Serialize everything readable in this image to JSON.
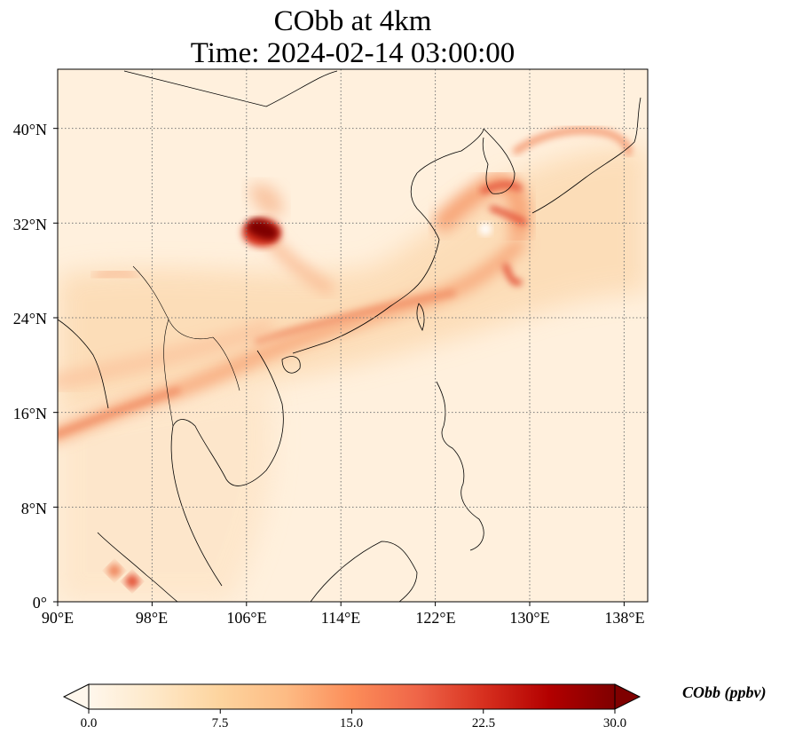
{
  "title": {
    "line1": "CObb at 4km",
    "line2": "Time: 2024-02-14 03:00:00"
  },
  "map": {
    "projection": "PlateCarree",
    "lon_range": [
      90,
      140
    ],
    "lat_range": [
      0,
      45
    ],
    "gridlines": "dotted",
    "x_ticks": [
      "90°E",
      "98°E",
      "106°E",
      "114°E",
      "122°E",
      "130°E",
      "138°E"
    ],
    "y_ticks": [
      "0°",
      "8°N",
      "16°N",
      "24°N",
      "32°N",
      "40°N"
    ],
    "x_tick_values": [
      90,
      98,
      106,
      114,
      122,
      130,
      138
    ],
    "y_tick_values": [
      0,
      8,
      16,
      24,
      32,
      40
    ],
    "field": "CObb",
    "features": [
      {
        "feature": "plume hotspot",
        "lon": 107,
        "lat": 31.5,
        "value": 30
      },
      {
        "feature": "transport band",
        "lon_span": [
          90,
          125
        ],
        "lat_span": [
          14.5,
          26
        ],
        "value": 12
      },
      {
        "feature": "band over Korea / Japan",
        "lon": 128,
        "lat": 35,
        "value": 18
      },
      {
        "feature": "arc east of Japan",
        "lon_span": [
          128,
          136
        ],
        "lat_span": [
          35,
          39
        ],
        "value": 9
      },
      {
        "feature": "spot over Sumatra",
        "lon": 96.5,
        "lat": 2.2,
        "value": 16
      }
    ]
  },
  "colorbar": {
    "label": "CObb (ppbv)",
    "min": 0,
    "max": 30,
    "extend": "both",
    "colormap": "OrRd",
    "ticks": [
      "0.0",
      "7.5",
      "15.0",
      "22.5",
      "30.0"
    ],
    "tick_values": [
      0,
      7.5,
      15,
      22.5,
      30
    ],
    "colors": [
      "#fff7ec",
      "#fee8c8",
      "#fdd49e",
      "#fdbb84",
      "#fc8d59",
      "#ef6548",
      "#d7301f",
      "#b30000",
      "#7f0000"
    ]
  }
}
